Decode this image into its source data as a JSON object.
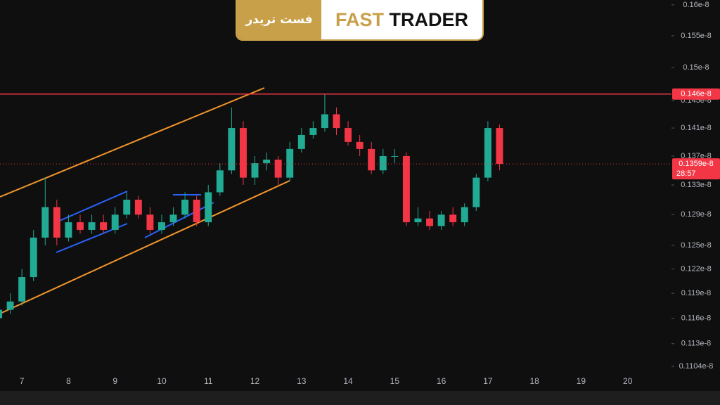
{
  "chart_data": {
    "type": "candlestick",
    "brand": {
      "persian": "فست تریدر",
      "first": "FAST",
      "second": "TRADER"
    },
    "x": [
      6.5,
      6.75,
      7,
      7.25,
      7.5,
      7.75,
      8,
      8.25,
      8.5,
      8.75,
      9,
      9.25,
      9.5,
      9.75,
      10,
      10.25,
      10.5,
      10.75,
      11,
      11.25,
      11.5,
      11.75,
      12,
      12.25,
      12.5,
      12.75,
      13,
      13.25,
      13.5,
      13.75,
      14,
      14.25,
      14.5,
      14.75,
      15,
      15.25,
      15.5,
      15.75,
      16,
      16.25,
      16.5,
      16.75,
      17,
      17.25
    ],
    "open": [
      1.16e-09,
      1.17e-09,
      1.18e-09,
      1.21e-09,
      1.26e-09,
      1.3e-09,
      1.26e-09,
      1.28e-09,
      1.27e-09,
      1.28e-09,
      1.27e-09,
      1.29e-09,
      1.31e-09,
      1.29e-09,
      1.27e-09,
      1.28e-09,
      1.29e-09,
      1.31e-09,
      1.28e-09,
      1.32e-09,
      1.35e-09,
      1.41e-09,
      1.34e-09,
      1.36e-09,
      1.365e-09,
      1.34e-09,
      1.38e-09,
      1.4e-09,
      1.41e-09,
      1.43e-09,
      1.41e-09,
      1.39e-09,
      1.38e-09,
      1.35e-09,
      1.37e-09,
      1.37e-09,
      1.28e-09,
      1.285e-09,
      1.275e-09,
      1.29e-09,
      1.28e-09,
      1.3e-09,
      1.34e-09,
      1.41e-09
    ],
    "high": [
      1.175e-09,
      1.19e-09,
      1.22e-09,
      1.27e-09,
      1.34e-09,
      1.31e-09,
      1.29e-09,
      1.29e-09,
      1.29e-09,
      1.29e-09,
      1.3e-09,
      1.32e-09,
      1.315e-09,
      1.3e-09,
      1.29e-09,
      1.3e-09,
      1.32e-09,
      1.315e-09,
      1.33e-09,
      1.36e-09,
      1.44e-09,
      1.42e-09,
      1.37e-09,
      1.375e-09,
      1.37e-09,
      1.39e-09,
      1.41e-09,
      1.42e-09,
      1.46e-09,
      1.44e-09,
      1.42e-09,
      1.4e-09,
      1.39e-09,
      1.38e-09,
      1.38e-09,
      1.375e-09,
      1.3e-09,
      1.295e-09,
      1.295e-09,
      1.3e-09,
      1.305e-09,
      1.345e-09,
      1.42e-09,
      1.415e-09
    ],
    "low": [
      1.155e-09,
      1.165e-09,
      1.175e-09,
      1.205e-09,
      1.25e-09,
      1.25e-09,
      1.255e-09,
      1.265e-09,
      1.265e-09,
      1.265e-09,
      1.265e-09,
      1.285e-09,
      1.285e-09,
      1.265e-09,
      1.265e-09,
      1.275e-09,
      1.285e-09,
      1.275e-09,
      1.275e-09,
      1.315e-09,
      1.345e-09,
      1.33e-09,
      1.33e-09,
      1.35e-09,
      1.33e-09,
      1.335e-09,
      1.375e-09,
      1.395e-09,
      1.405e-09,
      1.4e-09,
      1.385e-09,
      1.37e-09,
      1.345e-09,
      1.345e-09,
      1.36e-09,
      1.275e-09,
      1.275e-09,
      1.27e-09,
      1.27e-09,
      1.275e-09,
      1.275e-09,
      1.295e-09,
      1.335e-09,
      1.35e-09
    ],
    "close": [
      1.17e-09,
      1.18e-09,
      1.21e-09,
      1.26e-09,
      1.3e-09,
      1.26e-09,
      1.28e-09,
      1.27e-09,
      1.28e-09,
      1.27e-09,
      1.29e-09,
      1.31e-09,
      1.29e-09,
      1.27e-09,
      1.28e-09,
      1.29e-09,
      1.31e-09,
      1.28e-09,
      1.32e-09,
      1.35e-09,
      1.41e-09,
      1.34e-09,
      1.36e-09,
      1.365e-09,
      1.34e-09,
      1.38e-09,
      1.4e-09,
      1.41e-09,
      1.43e-09,
      1.41e-09,
      1.39e-09,
      1.38e-09,
      1.35e-09,
      1.37e-09,
      1.37e-09,
      1.28e-09,
      1.285e-09,
      1.275e-09,
      1.29e-09,
      1.28e-09,
      1.3e-09,
      1.34e-09,
      1.41e-09,
      1.359e-09
    ],
    "up_color": "#22ab94",
    "down_color": "#f23645",
    "log_scale": true,
    "grid": false,
    "xlim": [
      6.53,
      20.94
    ],
    "xticks": [
      7,
      8,
      9,
      10,
      11,
      12,
      13,
      14,
      15,
      16,
      17,
      18,
      19,
      20
    ],
    "ylim": [
      1.0765e-09,
      1.608e-09
    ],
    "yticks": [
      {
        "value": 1.6e-09,
        "label": "0.16e-8"
      },
      {
        "value": 1.55e-09,
        "label": "0.155e-8"
      },
      {
        "value": 1.5e-09,
        "label": "0.15e-8"
      },
      {
        "value": 1.45e-09,
        "label": "0.145e-8"
      },
      {
        "value": 1.41e-09,
        "label": "0.141e-8"
      },
      {
        "value": 1.37e-09,
        "label": "0.137e-8"
      },
      {
        "value": 1.33e-09,
        "label": "0.133e-8"
      },
      {
        "value": 1.29e-09,
        "label": "0.129e-8"
      },
      {
        "value": 1.25e-09,
        "label": "0.125e-8"
      },
      {
        "value": 1.22e-09,
        "label": "0.122e-8"
      },
      {
        "value": 1.19e-09,
        "label": "0.119e-8"
      },
      {
        "value": 1.16e-09,
        "label": "0.116e-8"
      },
      {
        "value": 1.13e-09,
        "label": "0.113e-8"
      },
      {
        "value": 1.104e-09,
        "label": "0.1104e-8"
      }
    ],
    "price_line": {
      "value": 1.46e-09,
      "label": "0.146e-8",
      "color": "#f23645"
    },
    "last_price": {
      "value": 1.359e-09,
      "label": "0.1359e-8",
      "countdown": "28:57",
      "color": "#f23645"
    }
  }
}
